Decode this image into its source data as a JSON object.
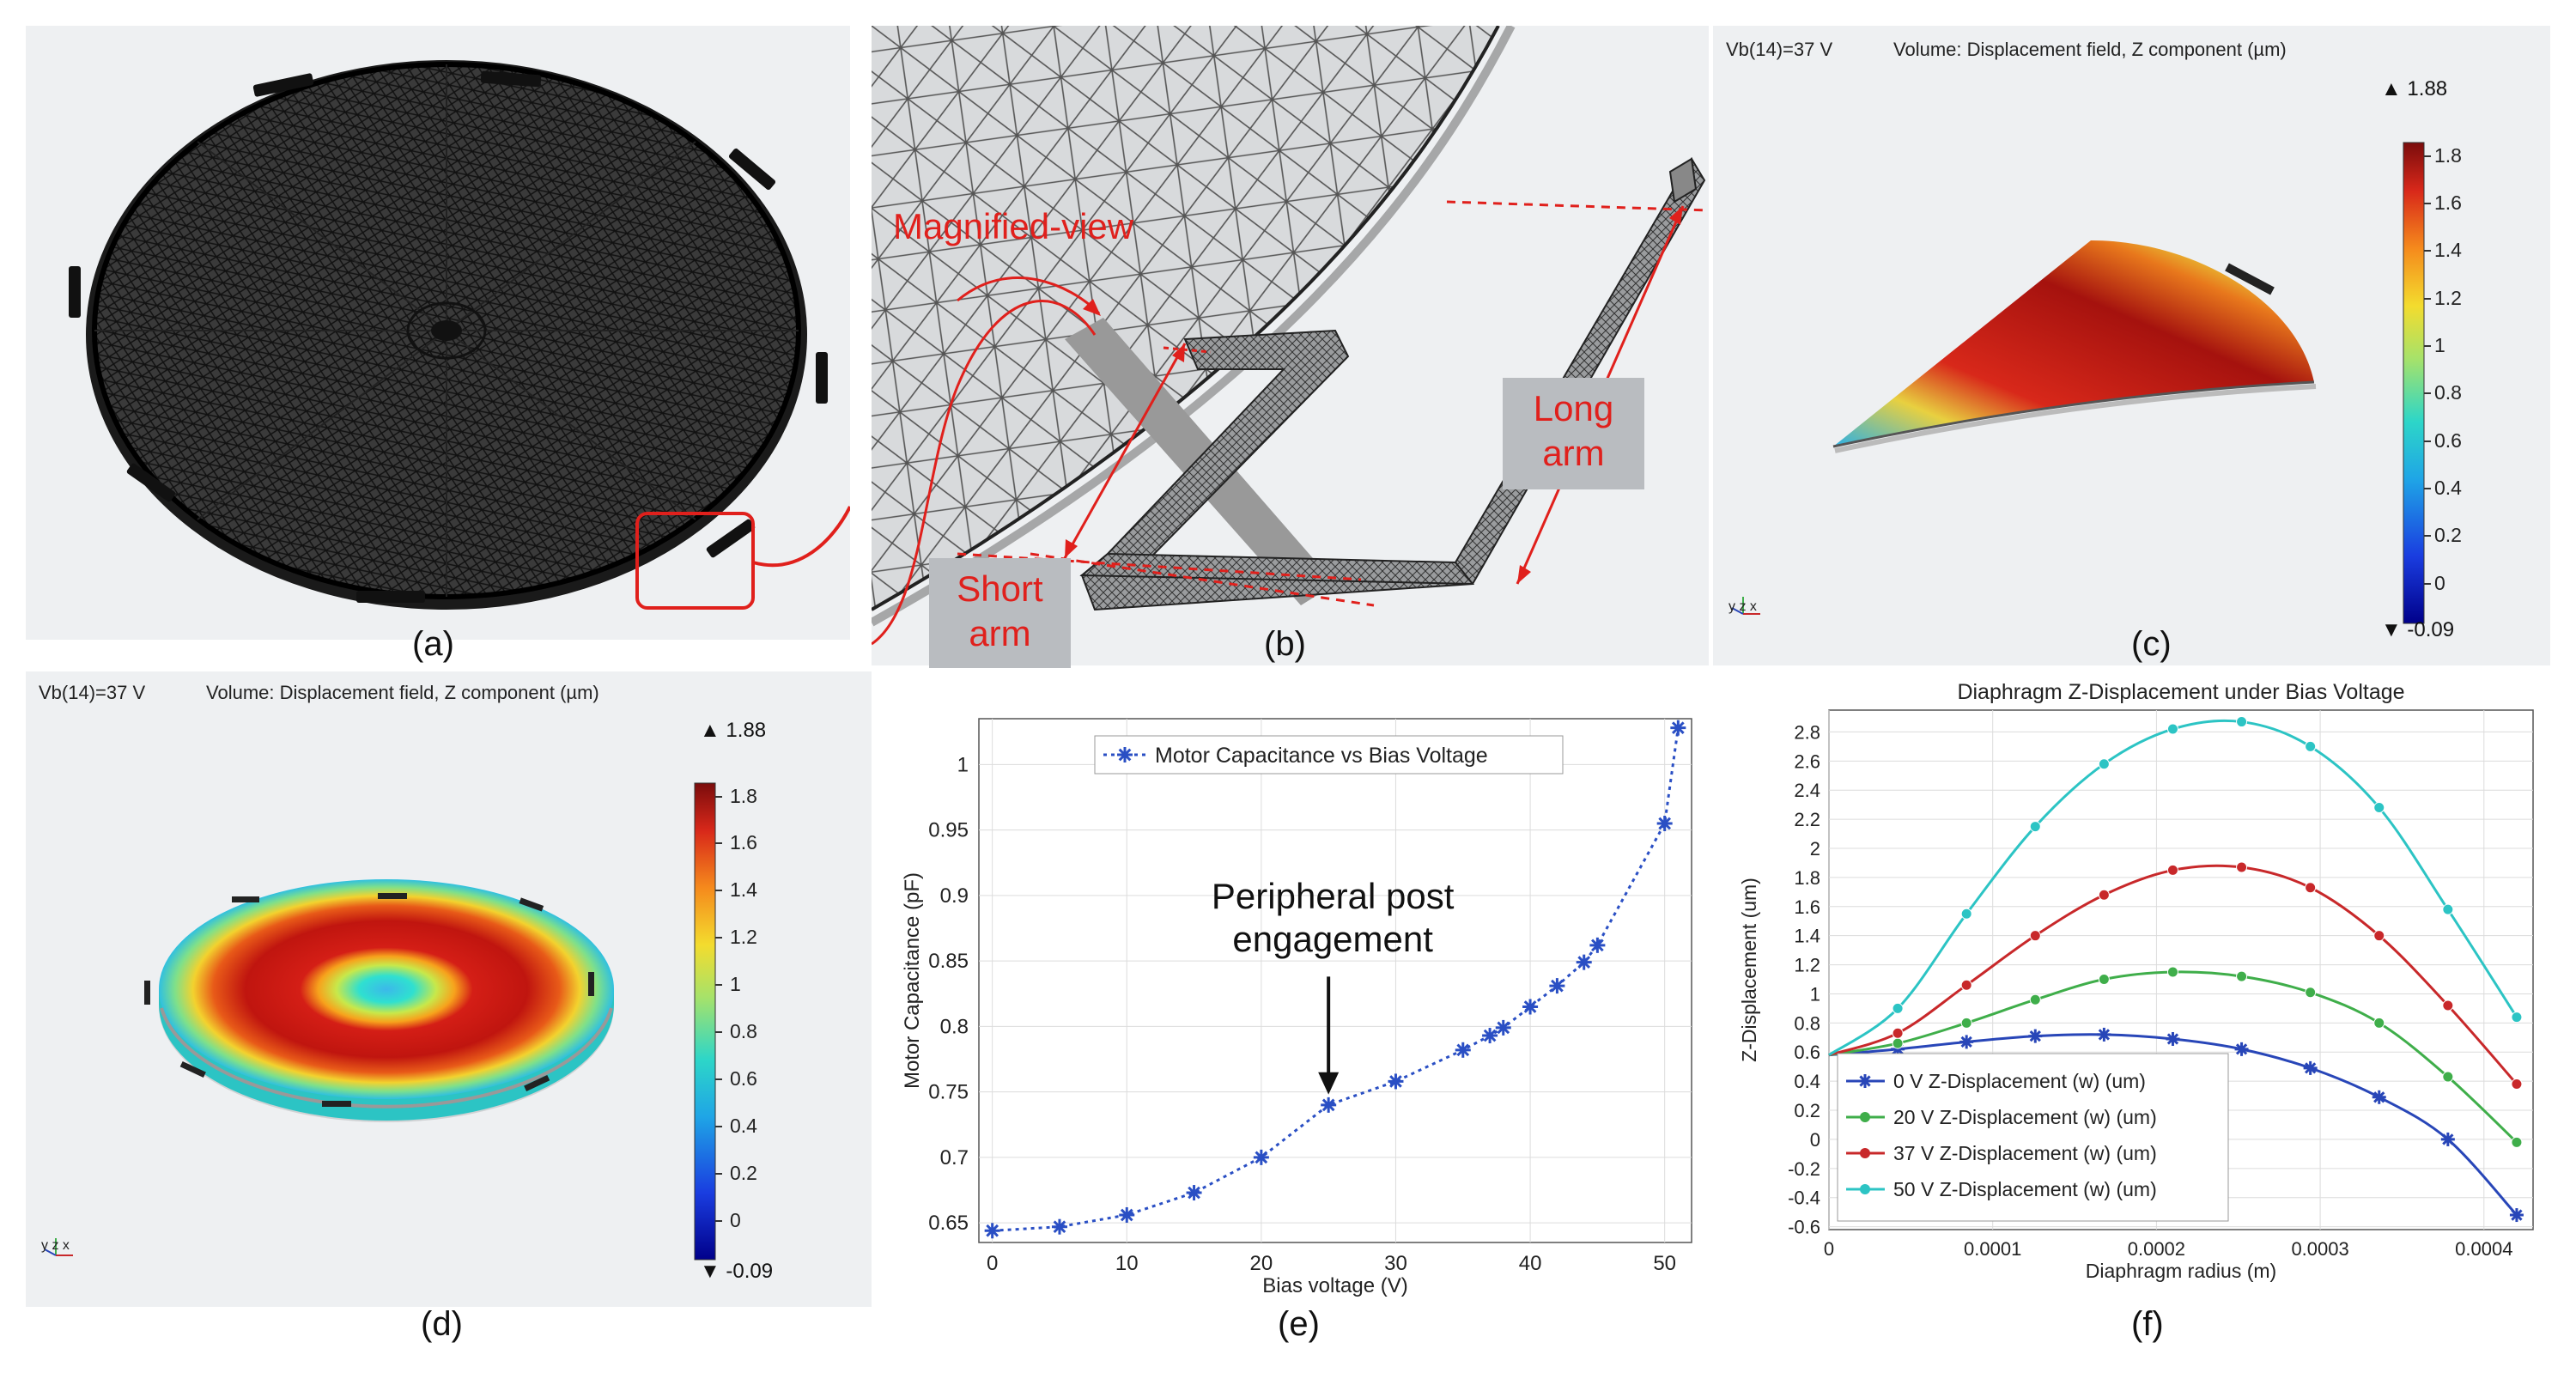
{
  "captions": {
    "a": "(a)",
    "b": "(b)",
    "c": "(c)",
    "d": "(d)",
    "e": "(e)",
    "f": "(f)"
  },
  "panel_b": {
    "magnified": "Magnified-view",
    "long_arm": "Long\narm",
    "short_arm": "Short\narm"
  },
  "panel_c": {
    "bias": "Vb(14)=37 V",
    "title": "Volume: Displacement field, Z component (µm)",
    "max": "▲ 1.88",
    "min": "▼ -0.09",
    "ticks": [
      "1.8",
      "1.6",
      "1.4",
      "1.2",
      "1",
      "0.8",
      "0.6",
      "0.4",
      "0.2",
      "0"
    ],
    "axes": "y z x"
  },
  "panel_d": {
    "bias": "Vb(14)=37 V",
    "title": "Volume: Displacement field, Z component (µm)",
    "max": "▲ 1.88",
    "min": "▼ -0.09",
    "ticks": [
      "1.8",
      "1.6",
      "1.4",
      "1.2",
      "1",
      "0.8",
      "0.6",
      "0.4",
      "0.2",
      "0"
    ],
    "axes": "y z x"
  },
  "colors": {
    "red": "#e0201c",
    "series_blue": "#2a4fc4",
    "s0": "#2846b8",
    "s20": "#3fae4a",
    "s37": "#c8282a",
    "s50": "#2cc4c4"
  },
  "chart_data": [
    {
      "type": "line",
      "title": "",
      "xlabel": "Bias voltage (V)",
      "ylabel": "Motor Capacitance (pF)",
      "xlim": [
        -1,
        52
      ],
      "ylim": [
        0.635,
        1.035
      ],
      "xticks": [
        "0",
        "10",
        "20",
        "30",
        "40",
        "50"
      ],
      "yticks": [
        "0.65",
        "0.7",
        "0.75",
        "0.8",
        "0.85",
        "0.9",
        "0.95",
        "1"
      ],
      "legend": "Motor Capacitance vs Bias Voltage",
      "annotation": "Peripheral post\nengagement",
      "x": [
        0,
        5,
        10,
        15,
        20,
        25,
        30,
        35,
        37,
        38,
        40,
        42,
        44,
        45,
        50,
        51
      ],
      "y": [
        0.644,
        0.647,
        0.656,
        0.673,
        0.7,
        0.74,
        0.758,
        0.782,
        0.793,
        0.799,
        0.815,
        0.831,
        0.849,
        0.862,
        0.955,
        1.028
      ]
    },
    {
      "type": "line",
      "title": "Diaphragm Z-Displacement under Bias Voltage",
      "xlabel": "Diaphragm radius (m)",
      "ylabel": "Z-Displacement (um)",
      "xlim": [
        0,
        0.00043
      ],
      "ylim": [
        -0.62,
        2.95
      ],
      "xticks": [
        "0",
        "0.0001",
        "0.0002",
        "0.0003",
        "0.0004"
      ],
      "yticks": [
        "-0.6",
        "-0.4",
        "-0.2",
        "0",
        "0.2",
        "0.4",
        "0.6",
        "0.8",
        "1",
        "1.2",
        "1.4",
        "1.6",
        "1.8",
        "2",
        "2.2",
        "2.4",
        "2.6",
        "2.8"
      ],
      "x": [
        0,
        4.2e-05,
        8.4e-05,
        0.000126,
        0.000168,
        0.00021,
        0.000252,
        0.000294,
        0.000336,
        0.000378,
        0.00042
      ],
      "series": [
        {
          "name": "0 V Z-Displacement (w) (um)",
          "values": [
            0.58,
            0.62,
            0.67,
            0.71,
            0.72,
            0.69,
            0.62,
            0.49,
            0.29,
            0.0,
            -0.52
          ]
        },
        {
          "name": "20 V Z-Displacement (w) (um)",
          "values": [
            0.58,
            0.66,
            0.8,
            0.96,
            1.1,
            1.15,
            1.12,
            1.01,
            0.8,
            0.43,
            -0.02
          ]
        },
        {
          "name": "37 V Z-Displacement (w) (um)",
          "values": [
            0.58,
            0.73,
            1.06,
            1.4,
            1.68,
            1.85,
            1.87,
            1.73,
            1.4,
            0.92,
            0.38
          ]
        },
        {
          "name": "50 V Z-Displacement (w) (um)",
          "values": [
            0.58,
            0.9,
            1.55,
            2.15,
            2.58,
            2.82,
            2.87,
            2.7,
            2.28,
            1.58,
            0.84
          ]
        }
      ]
    }
  ]
}
